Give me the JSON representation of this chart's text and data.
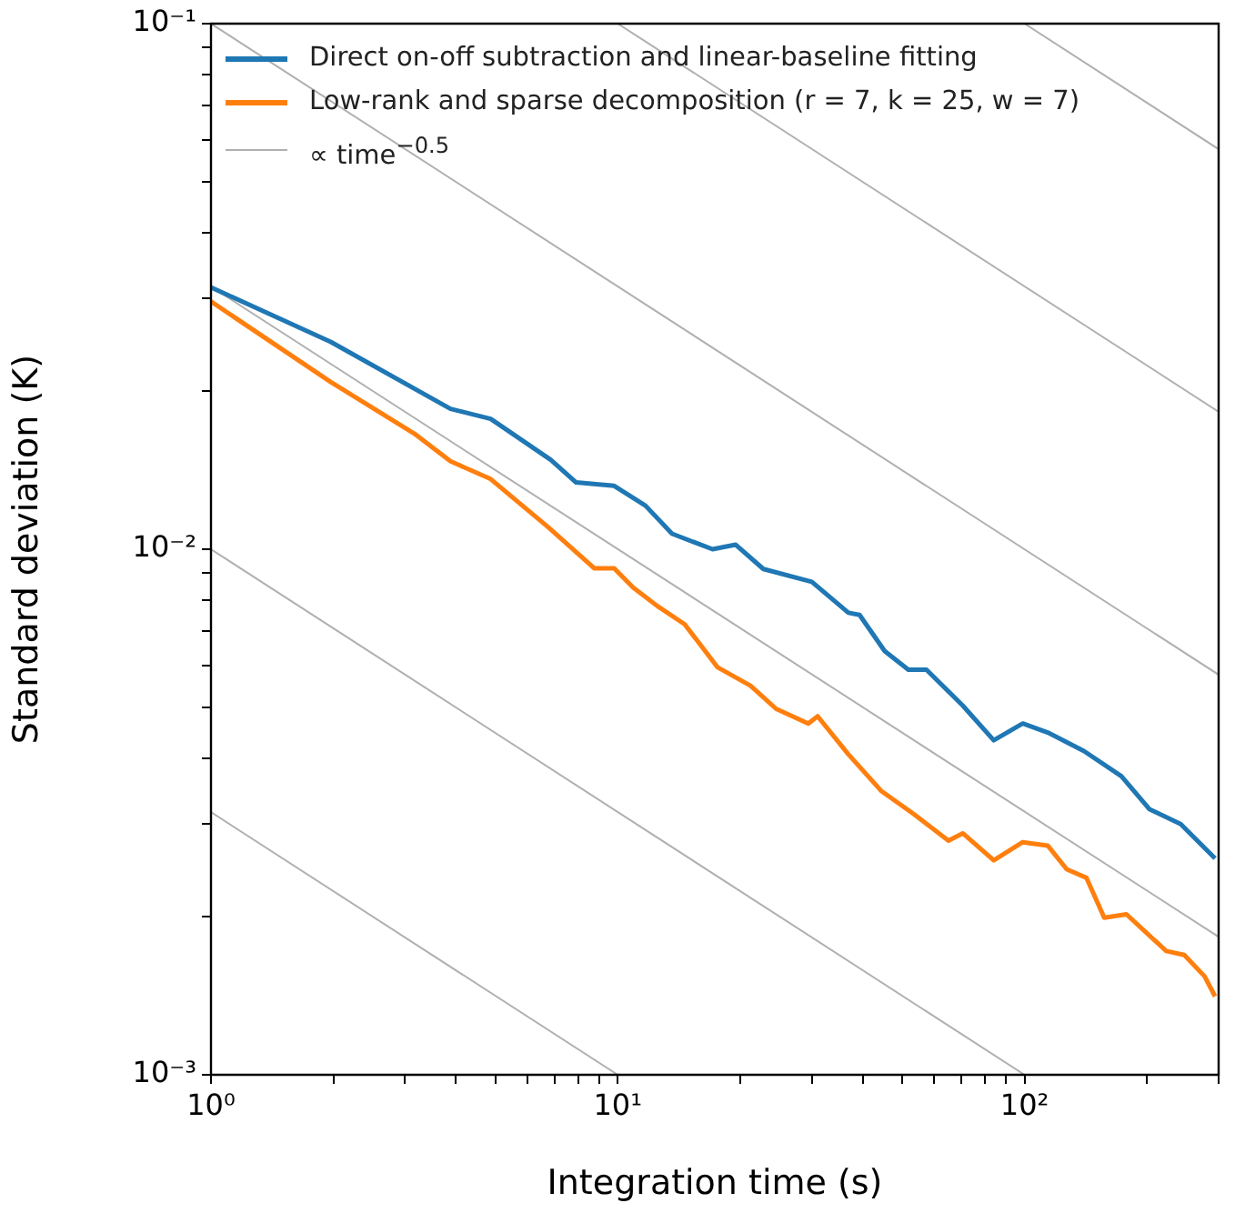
{
  "chart_data": {
    "type": "line",
    "xlabel": "Integration time (s)",
    "ylabel": "Standard deviation (K)",
    "log": "xy",
    "grid": false,
    "legend": "top left",
    "xlim": [
      1,
      300
    ],
    "ylim": [
      0.001,
      0.1
    ],
    "xticks": [
      {
        "value": 1,
        "label": "10⁰"
      },
      {
        "value": 2,
        "label": null
      },
      {
        "value": 3,
        "label": null
      },
      {
        "value": 4,
        "label": null
      },
      {
        "value": 5,
        "label": null
      },
      {
        "value": 6,
        "label": null
      },
      {
        "value": 7,
        "label": null
      },
      {
        "value": 8,
        "label": null
      },
      {
        "value": 9,
        "label": null
      },
      {
        "value": 10,
        "label": "10¹"
      },
      {
        "value": 20,
        "label": null
      },
      {
        "value": 30,
        "label": null
      },
      {
        "value": 40,
        "label": null
      },
      {
        "value": 50,
        "label": null
      },
      {
        "value": 60,
        "label": null
      },
      {
        "value": 70,
        "label": null
      },
      {
        "value": 80,
        "label": null
      },
      {
        "value": 90,
        "label": null
      },
      {
        "value": 100,
        "label": "10²"
      },
      {
        "value": 200,
        "label": null
      },
      {
        "value": 300,
        "label": null
      }
    ],
    "yticks": [
      {
        "value": 0.001,
        "label": "10⁻³"
      },
      {
        "value": 0.002,
        "label": null
      },
      {
        "value": 0.003,
        "label": null
      },
      {
        "value": 0.004,
        "label": null
      },
      {
        "value": 0.005,
        "label": null
      },
      {
        "value": 0.006,
        "label": null
      },
      {
        "value": 0.007,
        "label": null
      },
      {
        "value": 0.008,
        "label": null
      },
      {
        "value": 0.009,
        "label": null
      },
      {
        "value": 0.01,
        "label": "10⁻²"
      },
      {
        "value": 0.02,
        "label": null
      },
      {
        "value": 0.03,
        "label": null
      },
      {
        "value": 0.04,
        "label": null
      },
      {
        "value": 0.05,
        "label": null
      },
      {
        "value": 0.06,
        "label": null
      },
      {
        "value": 0.07,
        "label": null
      },
      {
        "value": 0.08,
        "label": null
      },
      {
        "value": 0.09,
        "label": null
      },
      {
        "value": 0.1,
        "label": "10⁻¹"
      }
    ],
    "series": [
      {
        "name": "Direct on-off subtraction and linear-baseline fitting",
        "color": "#1f77b4",
        "x": [
          1,
          1.97,
          3.88,
          4.87,
          6.84,
          7.9,
          9.8,
          11.7,
          13.6,
          17.1,
          19.5,
          22.8,
          30,
          36.9,
          39.3,
          45.3,
          51.8,
          57.4,
          70.5,
          84,
          99,
          114,
          140,
          173,
          203,
          242,
          294
        ],
        "values": [
          0.0315,
          0.0248,
          0.0185,
          0.0177,
          0.0148,
          0.0134,
          0.0132,
          0.0121,
          0.0107,
          0.01,
          0.0102,
          0.00917,
          0.00867,
          0.00757,
          0.0075,
          0.0064,
          0.0059,
          0.0059,
          0.00504,
          0.00433,
          0.00466,
          0.00448,
          0.00413,
          0.0037,
          0.0032,
          0.003,
          0.00258
        ]
      },
      {
        "name": "Low-rank and sparse decomposition (r = 7, k = 25, w = 7)",
        "color": "#ff7f0e",
        "x": [
          1,
          1.97,
          3.16,
          3.88,
          4.87,
          6.76,
          8.75,
          9.8,
          10.9,
          12.5,
          14.6,
          17.6,
          21.2,
          24.5,
          29.4,
          31,
          36.9,
          44.4,
          53.5,
          65,
          70.5,
          84,
          99,
          114,
          127,
          142,
          157,
          178,
          223,
          247,
          277,
          294
        ],
        "values": [
          0.0296,
          0.0208,
          0.0166,
          0.0147,
          0.0136,
          0.011,
          0.0092,
          0.0092,
          0.00846,
          0.0078,
          0.0072,
          0.00596,
          0.0055,
          0.00497,
          0.00466,
          0.00481,
          0.00407,
          0.00347,
          0.00313,
          0.00279,
          0.00288,
          0.00256,
          0.00277,
          0.00273,
          0.00246,
          0.00237,
          0.00199,
          0.00202,
          0.00172,
          0.00169,
          0.00154,
          0.00141
        ]
      },
      {
        "name": "∝ time$^{−0.5}$",
        "type": "line",
        "color": "#b0b0b0",
        "x": [
          1,
          300
        ],
        "values": [
          0.1,
          0.00577
        ]
      },
      {
        "type": "line",
        "color": "#b0b0b0",
        "x": [
          100,
          300
        ],
        "values": [
          0.1,
          0.0577
        ]
      },
      {
        "type": "line",
        "color": "#b0b0b0",
        "x": [
          10,
          300
        ],
        "values": [
          0.1,
          0.01826
        ]
      },
      {
        "type": "line",
        "color": "#b0b0b0",
        "x": [
          1,
          300
        ],
        "values": [
          0.0316,
          0.00183
        ]
      },
      {
        "type": "line",
        "color": "#b0b0b0",
        "x": [
          1,
          100
        ],
        "values": [
          0.01,
          0.001
        ]
      },
      {
        "type": "line",
        "color": "#b0b0b0",
        "x": [
          1,
          10
        ],
        "values": [
          0.00316,
          0.001
        ]
      }
    ]
  }
}
